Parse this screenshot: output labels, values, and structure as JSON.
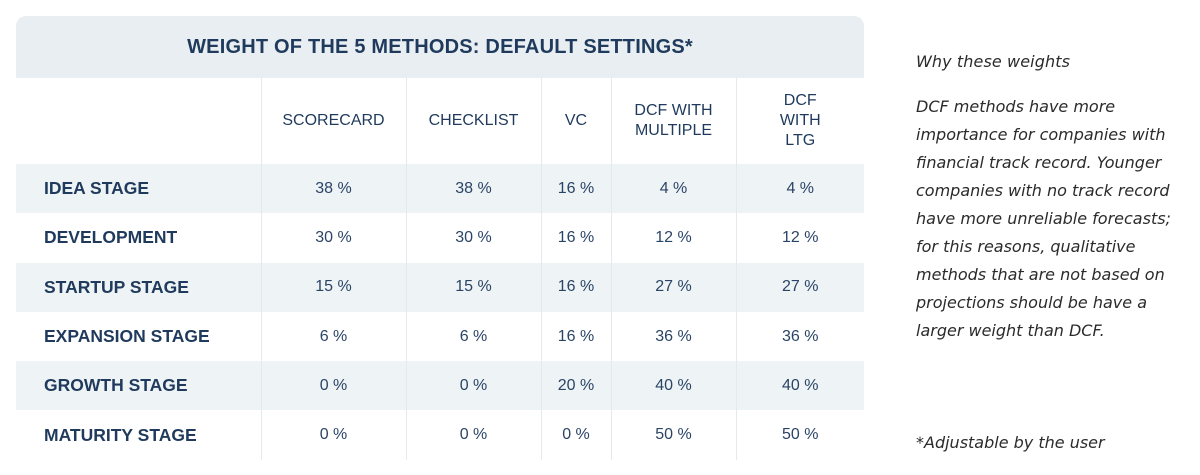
{
  "table": {
    "title": "WEIGHT OF THE 5 METHODS: DEFAULT SETTINGS*",
    "columns": [
      "SCORECARD",
      "CHECKLIST",
      "VC",
      "DCF WITH MULTIPLE",
      "DCF WITH LTG"
    ],
    "rows": [
      {
        "label": "IDEA STAGE",
        "values": [
          "38 %",
          "38 %",
          "16 %",
          "4 %",
          "4 %"
        ]
      },
      {
        "label": "DEVELOPMENT",
        "values": [
          "30 %",
          "30 %",
          "16 %",
          "12 %",
          "12 %"
        ]
      },
      {
        "label": "STARTUP STAGE",
        "values": [
          "15 %",
          "15 %",
          "16 %",
          "27 %",
          "27 %"
        ]
      },
      {
        "label": "EXPANSION STAGE",
        "values": [
          "6 %",
          "6 %",
          "16 %",
          "36 %",
          "36 %"
        ]
      },
      {
        "label": "GROWTH STAGE",
        "values": [
          "0 %",
          "0 %",
          "20 %",
          "40 %",
          "40 %"
        ]
      },
      {
        "label": "MATURITY STAGE",
        "values": [
          "0 %",
          "0 %",
          "0 %",
          "50 %",
          "50 %"
        ]
      }
    ]
  },
  "side": {
    "heading": "Why these weights",
    "body": "DCF methods have more importance for companies with financial track record. Younger companies with no track record have more unreliable forecasts; for this reasons, qualitative methods that are not based on projections should be have a larger weight than DCF.",
    "note": "*Adjustable by the user"
  },
  "colors": {
    "header_bg": "#e8eef1",
    "stripe_bg": "#eef3f5",
    "text_navy": "#1f3a5c"
  }
}
